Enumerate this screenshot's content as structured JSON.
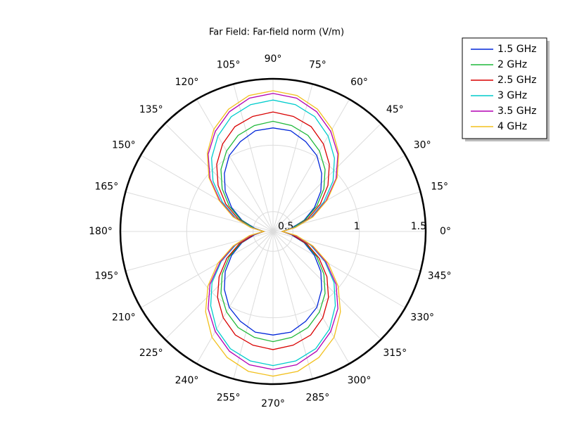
{
  "chart_data": {
    "type": "polar",
    "title": "Far Field: Far-field norm (V/m)",
    "theta": [
      0,
      10,
      20,
      30,
      40,
      50,
      60,
      70,
      80,
      90,
      100,
      110,
      120,
      130,
      140,
      150,
      160,
      170,
      180,
      190,
      200,
      210,
      220,
      230,
      240,
      250,
      260,
      270,
      280,
      290,
      300,
      310,
      320,
      330,
      340,
      350
    ],
    "rlim": [
      0.35,
      1.5
    ],
    "rticks": [
      0.5,
      1,
      1.5
    ],
    "thetaticks": [
      {
        "value": 0,
        "label": "0°"
      },
      {
        "value": 15,
        "label": "15°"
      },
      {
        "value": 30,
        "label": "30°"
      },
      {
        "value": 45,
        "label": "45°"
      },
      {
        "value": 60,
        "label": "60°"
      },
      {
        "value": 75,
        "label": "75°"
      },
      {
        "value": 90,
        "label": "90°"
      },
      {
        "value": 105,
        "label": "105°"
      },
      {
        "value": 120,
        "label": "120°"
      },
      {
        "value": 135,
        "label": "135°"
      },
      {
        "value": 150,
        "label": "150°"
      },
      {
        "value": 165,
        "label": "165°"
      },
      {
        "value": 180,
        "label": "180°"
      },
      {
        "value": 195,
        "label": "195°"
      },
      {
        "value": 210,
        "label": "210°"
      },
      {
        "value": 225,
        "label": "225°"
      },
      {
        "value": 240,
        "label": "240°"
      },
      {
        "value": 255,
        "label": "255°"
      },
      {
        "value": 270,
        "label": "270°"
      },
      {
        "value": 285,
        "label": "285°"
      },
      {
        "value": 300,
        "label": "300°"
      },
      {
        "value": 315,
        "label": "315°"
      },
      {
        "value": 330,
        "label": "330°"
      },
      {
        "value": 345,
        "label": "345°"
      }
    ],
    "grid": true,
    "legend": "upper right",
    "series": [
      {
        "name": "1.5 GHz",
        "color": "#0026d9",
        "values": [
          0.42,
          0.49,
          0.6,
          0.71,
          0.82,
          0.92,
          1.01,
          1.07,
          1.12,
          1.13,
          1.12,
          1.07,
          1.01,
          0.92,
          0.82,
          0.71,
          0.6,
          0.49,
          0.42,
          0.49,
          0.6,
          0.71,
          0.82,
          0.92,
          1.01,
          1.07,
          1.12,
          1.13,
          1.12,
          1.07,
          1.01,
          0.92,
          0.82,
          0.71,
          0.6,
          0.49
        ]
      },
      {
        "name": "2 GHz",
        "color": "#1fb83a",
        "values": [
          0.42,
          0.5,
          0.61,
          0.73,
          0.85,
          0.96,
          1.05,
          1.12,
          1.16,
          1.18,
          1.16,
          1.12,
          1.05,
          0.96,
          0.85,
          0.73,
          0.61,
          0.5,
          0.42,
          0.5,
          0.61,
          0.73,
          0.85,
          0.96,
          1.05,
          1.12,
          1.16,
          1.18,
          1.16,
          1.12,
          1.05,
          0.96,
          0.85,
          0.73,
          0.61,
          0.5
        ]
      },
      {
        "name": "2.5 GHz",
        "color": "#d90000",
        "values": [
          0.42,
          0.51,
          0.63,
          0.76,
          0.89,
          1.01,
          1.11,
          1.19,
          1.23,
          1.25,
          1.23,
          1.19,
          1.11,
          1.01,
          0.89,
          0.76,
          0.63,
          0.51,
          0.42,
          0.5,
          0.62,
          0.75,
          0.88,
          1.0,
          1.1,
          1.18,
          1.22,
          1.24,
          1.22,
          1.18,
          1.1,
          1.0,
          0.88,
          0.75,
          0.62,
          0.5
        ]
      },
      {
        "name": "3 GHz",
        "color": "#00cccc",
        "values": [
          0.42,
          0.51,
          0.65,
          0.79,
          0.94,
          1.07,
          1.18,
          1.27,
          1.32,
          1.34,
          1.32,
          1.27,
          1.18,
          1.07,
          0.94,
          0.79,
          0.65,
          0.51,
          0.42,
          0.52,
          0.65,
          0.8,
          0.95,
          1.08,
          1.2,
          1.29,
          1.34,
          1.36,
          1.34,
          1.29,
          1.2,
          1.08,
          0.95,
          0.8,
          0.65,
          0.52
        ]
      },
      {
        "name": "3.5 GHz",
        "color": "#b300b3",
        "values": [
          0.42,
          0.52,
          0.66,
          0.81,
          0.97,
          1.11,
          1.22,
          1.31,
          1.37,
          1.39,
          1.37,
          1.31,
          1.22,
          1.11,
          0.97,
          0.81,
          0.66,
          0.52,
          0.42,
          0.52,
          0.66,
          0.81,
          0.97,
          1.11,
          1.22,
          1.31,
          1.37,
          1.39,
          1.37,
          1.31,
          1.22,
          1.11,
          0.97,
          0.81,
          0.66,
          0.52
        ]
      },
      {
        "name": "4 GHz",
        "color": "#f2c01d",
        "values": [
          0.42,
          0.52,
          0.67,
          0.82,
          0.98,
          1.12,
          1.24,
          1.33,
          1.39,
          1.41,
          1.39,
          1.33,
          1.24,
          1.12,
          0.98,
          0.82,
          0.67,
          0.52,
          0.42,
          0.53,
          0.67,
          0.83,
          0.99,
          1.14,
          1.27,
          1.36,
          1.42,
          1.44,
          1.42,
          1.36,
          1.27,
          1.14,
          0.99,
          0.83,
          0.67,
          0.53
        ]
      }
    ]
  }
}
